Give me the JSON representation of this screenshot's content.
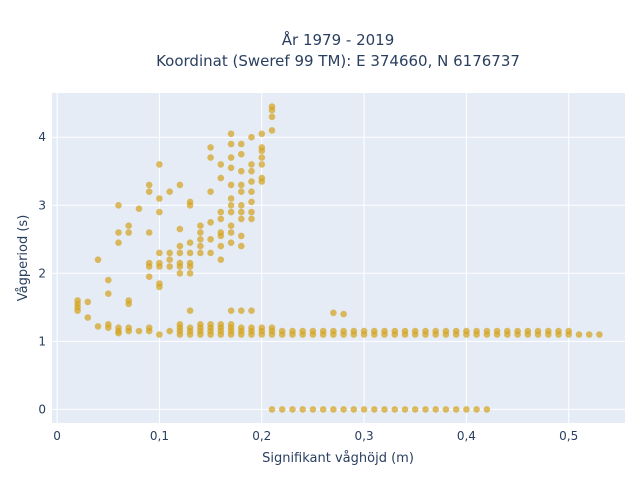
{
  "chart_data": {
    "type": "scatter",
    "title_line1": "År 1979 - 2019",
    "title_line2": "Koordinat (Sweref 99 TM): E 374660, N 6176737",
    "xlabel": "Signifikant våghöjd (m)",
    "ylabel": "Vågperiod (s)",
    "xlim": [
      -0.005,
      0.555
    ],
    "ylim": [
      -0.2,
      4.65
    ],
    "x_ticks": [
      0,
      0.1,
      0.2,
      0.3,
      0.4,
      0.5
    ],
    "x_tick_labels": [
      "0",
      "0,1",
      "0,2",
      "0,3",
      "0,4",
      "0,5"
    ],
    "y_ticks": [
      0,
      1,
      2,
      3,
      4
    ],
    "y_tick_labels": [
      "0",
      "1",
      "2",
      "3",
      "4"
    ],
    "grid": true,
    "colors": {
      "marker": "#d4a21c",
      "plot_bg": "#e5ecf6",
      "text": "#2a3f5f"
    },
    "series": [
      {
        "values": [
          [
            0.02,
            1.45
          ],
          [
            0.02,
            1.5
          ],
          [
            0.02,
            1.55
          ],
          [
            0.02,
            1.6
          ],
          [
            0.03,
            1.35
          ],
          [
            0.03,
            1.58
          ],
          [
            0.04,
            1.22
          ],
          [
            0.04,
            2.2
          ],
          [
            0.05,
            1.2
          ],
          [
            0.05,
            1.25
          ],
          [
            0.05,
            1.7
          ],
          [
            0.05,
            1.9
          ],
          [
            0.06,
            1.12
          ],
          [
            0.06,
            1.15
          ],
          [
            0.06,
            1.2
          ],
          [
            0.06,
            2.45
          ],
          [
            0.06,
            2.6
          ],
          [
            0.06,
            3.0
          ],
          [
            0.07,
            1.15
          ],
          [
            0.07,
            1.2
          ],
          [
            0.07,
            1.55
          ],
          [
            0.07,
            1.6
          ],
          [
            0.07,
            2.6
          ],
          [
            0.07,
            2.7
          ],
          [
            0.08,
            1.15
          ],
          [
            0.08,
            2.95
          ],
          [
            0.09,
            1.15
          ],
          [
            0.09,
            1.2
          ],
          [
            0.09,
            1.95
          ],
          [
            0.09,
            2.1
          ],
          [
            0.09,
            2.15
          ],
          [
            0.09,
            2.6
          ],
          [
            0.09,
            3.2
          ],
          [
            0.09,
            3.3
          ],
          [
            0.1,
            1.1
          ],
          [
            0.1,
            1.8
          ],
          [
            0.1,
            1.85
          ],
          [
            0.1,
            2.1
          ],
          [
            0.1,
            2.15
          ],
          [
            0.1,
            2.3
          ],
          [
            0.1,
            2.9
          ],
          [
            0.1,
            3.1
          ],
          [
            0.1,
            3.6
          ],
          [
            0.11,
            1.15
          ],
          [
            0.11,
            2.1
          ],
          [
            0.11,
            2.2
          ],
          [
            0.11,
            2.3
          ],
          [
            0.11,
            3.2
          ],
          [
            0.12,
            1.1
          ],
          [
            0.12,
            1.15
          ],
          [
            0.12,
            1.2
          ],
          [
            0.12,
            1.25
          ],
          [
            0.12,
            2.0
          ],
          [
            0.12,
            2.1
          ],
          [
            0.12,
            2.15
          ],
          [
            0.12,
            2.3
          ],
          [
            0.12,
            2.4
          ],
          [
            0.12,
            2.65
          ],
          [
            0.12,
            3.3
          ],
          [
            0.13,
            1.1
          ],
          [
            0.13,
            1.15
          ],
          [
            0.13,
            1.2
          ],
          [
            0.13,
            1.45
          ],
          [
            0.13,
            2.0
          ],
          [
            0.13,
            2.1
          ],
          [
            0.13,
            2.15
          ],
          [
            0.13,
            2.3
          ],
          [
            0.13,
            2.45
          ],
          [
            0.13,
            3.0
          ],
          [
            0.13,
            3.05
          ],
          [
            0.14,
            1.1
          ],
          [
            0.14,
            1.15
          ],
          [
            0.14,
            1.2
          ],
          [
            0.14,
            1.25
          ],
          [
            0.14,
            2.3
          ],
          [
            0.14,
            2.4
          ],
          [
            0.14,
            2.5
          ],
          [
            0.14,
            2.6
          ],
          [
            0.14,
            2.7
          ],
          [
            0.15,
            1.1
          ],
          [
            0.15,
            1.15
          ],
          [
            0.15,
            1.2
          ],
          [
            0.15,
            1.25
          ],
          [
            0.15,
            2.3
          ],
          [
            0.15,
            2.5
          ],
          [
            0.15,
            2.75
          ],
          [
            0.15,
            3.2
          ],
          [
            0.15,
            3.7
          ],
          [
            0.15,
            3.85
          ],
          [
            0.16,
            1.1
          ],
          [
            0.16,
            1.15
          ],
          [
            0.16,
            1.2
          ],
          [
            0.16,
            1.25
          ],
          [
            0.16,
            2.2
          ],
          [
            0.16,
            2.4
          ],
          [
            0.16,
            2.55
          ],
          [
            0.16,
            2.6
          ],
          [
            0.16,
            2.8
          ],
          [
            0.16,
            2.9
          ],
          [
            0.16,
            3.4
          ],
          [
            0.16,
            3.6
          ],
          [
            0.17,
            1.1
          ],
          [
            0.17,
            1.15
          ],
          [
            0.17,
            1.2
          ],
          [
            0.17,
            1.25
          ],
          [
            0.17,
            1.45
          ],
          [
            0.17,
            2.45
          ],
          [
            0.17,
            2.6
          ],
          [
            0.17,
            2.7
          ],
          [
            0.17,
            2.9
          ],
          [
            0.17,
            3.0
          ],
          [
            0.17,
            3.1
          ],
          [
            0.17,
            3.3
          ],
          [
            0.17,
            3.55
          ],
          [
            0.17,
            3.7
          ],
          [
            0.17,
            3.9
          ],
          [
            0.17,
            4.05
          ],
          [
            0.18,
            1.1
          ],
          [
            0.18,
            1.15
          ],
          [
            0.18,
            1.2
          ],
          [
            0.18,
            1.45
          ],
          [
            0.18,
            2.4
          ],
          [
            0.18,
            2.55
          ],
          [
            0.18,
            2.8
          ],
          [
            0.18,
            2.9
          ],
          [
            0.18,
            3.0
          ],
          [
            0.18,
            3.2
          ],
          [
            0.18,
            3.3
          ],
          [
            0.18,
            3.5
          ],
          [
            0.18,
            3.75
          ],
          [
            0.18,
            3.9
          ],
          [
            0.19,
            1.1
          ],
          [
            0.19,
            1.15
          ],
          [
            0.19,
            1.2
          ],
          [
            0.19,
            1.45
          ],
          [
            0.19,
            2.8
          ],
          [
            0.19,
            2.9
          ],
          [
            0.19,
            3.05
          ],
          [
            0.19,
            3.2
          ],
          [
            0.19,
            3.35
          ],
          [
            0.19,
            3.5
          ],
          [
            0.19,
            3.6
          ],
          [
            0.19,
            4.0
          ],
          [
            0.2,
            1.1
          ],
          [
            0.2,
            1.15
          ],
          [
            0.2,
            1.2
          ],
          [
            0.2,
            3.35
          ],
          [
            0.2,
            3.4
          ],
          [
            0.2,
            3.6
          ],
          [
            0.2,
            3.7
          ],
          [
            0.2,
            3.8
          ],
          [
            0.2,
            3.85
          ],
          [
            0.2,
            4.05
          ],
          [
            0.21,
            0.0
          ],
          [
            0.21,
            1.1
          ],
          [
            0.21,
            1.15
          ],
          [
            0.21,
            1.2
          ],
          [
            0.21,
            4.1
          ],
          [
            0.21,
            4.3
          ],
          [
            0.21,
            4.4
          ],
          [
            0.21,
            4.45
          ],
          [
            0.22,
            0.0
          ],
          [
            0.22,
            1.1
          ],
          [
            0.22,
            1.15
          ],
          [
            0.23,
            0.0
          ],
          [
            0.23,
            1.1
          ],
          [
            0.23,
            1.15
          ],
          [
            0.24,
            0.0
          ],
          [
            0.24,
            1.1
          ],
          [
            0.24,
            1.15
          ],
          [
            0.25,
            0.0
          ],
          [
            0.25,
            1.1
          ],
          [
            0.25,
            1.15
          ],
          [
            0.26,
            0.0
          ],
          [
            0.26,
            1.1
          ],
          [
            0.26,
            1.15
          ],
          [
            0.27,
            0.0
          ],
          [
            0.27,
            1.1
          ],
          [
            0.27,
            1.15
          ],
          [
            0.27,
            1.42
          ],
          [
            0.28,
            0.0
          ],
          [
            0.28,
            1.1
          ],
          [
            0.28,
            1.15
          ],
          [
            0.28,
            1.4
          ],
          [
            0.29,
            0.0
          ],
          [
            0.29,
            1.1
          ],
          [
            0.29,
            1.15
          ],
          [
            0.3,
            0.0
          ],
          [
            0.3,
            1.1
          ],
          [
            0.3,
            1.15
          ],
          [
            0.31,
            0.0
          ],
          [
            0.31,
            1.1
          ],
          [
            0.31,
            1.15
          ],
          [
            0.32,
            0.0
          ],
          [
            0.32,
            1.1
          ],
          [
            0.32,
            1.15
          ],
          [
            0.33,
            0.0
          ],
          [
            0.33,
            1.1
          ],
          [
            0.33,
            1.15
          ],
          [
            0.34,
            0.0
          ],
          [
            0.34,
            1.1
          ],
          [
            0.34,
            1.15
          ],
          [
            0.35,
            0.0
          ],
          [
            0.35,
            1.1
          ],
          [
            0.35,
            1.15
          ],
          [
            0.36,
            0.0
          ],
          [
            0.36,
            1.1
          ],
          [
            0.36,
            1.15
          ],
          [
            0.37,
            0.0
          ],
          [
            0.37,
            1.1
          ],
          [
            0.37,
            1.15
          ],
          [
            0.38,
            0.0
          ],
          [
            0.38,
            1.1
          ],
          [
            0.38,
            1.15
          ],
          [
            0.39,
            0.0
          ],
          [
            0.39,
            1.1
          ],
          [
            0.39,
            1.15
          ],
          [
            0.4,
            0.0
          ],
          [
            0.4,
            1.1
          ],
          [
            0.4,
            1.15
          ],
          [
            0.41,
            0.0
          ],
          [
            0.41,
            1.1
          ],
          [
            0.41,
            1.15
          ],
          [
            0.42,
            0.0
          ],
          [
            0.42,
            1.1
          ],
          [
            0.42,
            1.15
          ],
          [
            0.43,
            1.1
          ],
          [
            0.43,
            1.15
          ],
          [
            0.44,
            1.1
          ],
          [
            0.44,
            1.15
          ],
          [
            0.45,
            1.1
          ],
          [
            0.45,
            1.15
          ],
          [
            0.46,
            1.1
          ],
          [
            0.46,
            1.15
          ],
          [
            0.47,
            1.1
          ],
          [
            0.47,
            1.15
          ],
          [
            0.48,
            1.1
          ],
          [
            0.48,
            1.15
          ],
          [
            0.49,
            1.1
          ],
          [
            0.49,
            1.15
          ],
          [
            0.5,
            1.1
          ],
          [
            0.5,
            1.15
          ],
          [
            0.51,
            1.1
          ],
          [
            0.52,
            1.1
          ],
          [
            0.53,
            1.1
          ]
        ]
      }
    ]
  }
}
